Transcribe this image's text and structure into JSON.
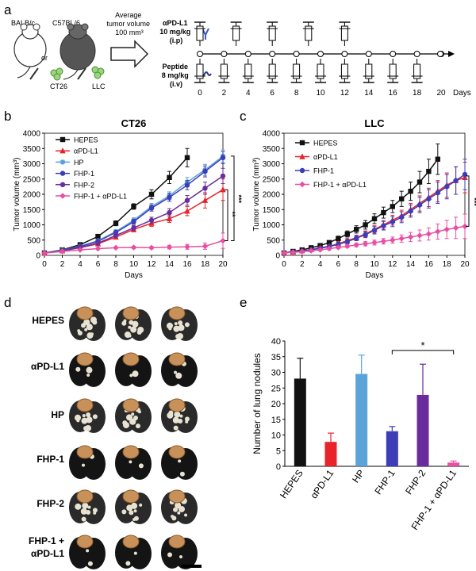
{
  "panels": {
    "a": {
      "letter": "a",
      "mouse1": "BALB/c",
      "or": "or",
      "mouse2": "C57BL/6",
      "cell1": "CT26",
      "cell2": "LLC",
      "avg_lines": [
        "Average",
        "tumor volume",
        "100 mm³"
      ],
      "drug1_lines": [
        "αPD-L1",
        "10 mg/kg",
        "(i.p)"
      ],
      "drug2_lines": [
        "Peptide",
        "8 mg/kg",
        "(i.v)"
      ],
      "days": [
        "0",
        "2",
        "4",
        "6",
        "8",
        "10",
        "12",
        "14",
        "16",
        "18",
        "20"
      ],
      "days_label": "Days",
      "apd_days": [
        0,
        3,
        6,
        9,
        12
      ],
      "peptide_days": [
        0,
        2,
        4,
        6,
        8,
        10,
        12,
        14,
        16,
        18
      ]
    },
    "b": {
      "letter": "b"
    },
    "c": {
      "letter": "c"
    },
    "d": {
      "letter": "d",
      "rows": [
        "HEPES",
        "αPD-L1",
        "HP",
        "FHP-1",
        "FHP-2",
        "FHP-1 +",
        "αPD-L1"
      ]
    },
    "e": {
      "letter": "e"
    }
  },
  "colors": {
    "HEPES": "#111111",
    "aPD": "#e8232a",
    "HP": "#5ba3d9",
    "FHP1": "#3d3db8",
    "FHP2": "#6a2c9c",
    "combo": "#e84fa3"
  },
  "chart_data": [
    {
      "id": "b",
      "type": "line",
      "title": "CT26",
      "xlabel": "Days",
      "ylabel": "Tumor volume (mm³)",
      "xlim": [
        0,
        20
      ],
      "ylim": [
        0,
        4000
      ],
      "xticks": [
        "0",
        "2",
        "4",
        "6",
        "8",
        "10",
        "12",
        "14",
        "16",
        "18",
        "20"
      ],
      "yticks": [
        "0",
        "500",
        "1000",
        "1500",
        "2000",
        "2500",
        "3000",
        "3500",
        "4000"
      ],
      "series": [
        {
          "name": "HEPES",
          "color": "#111111",
          "marker": "square",
          "x": [
            0,
            2,
            4,
            6,
            8,
            10,
            12,
            14,
            16
          ],
          "y": [
            80,
            180,
            350,
            620,
            1050,
            1600,
            2000,
            2550,
            3200
          ],
          "err": [
            20,
            30,
            40,
            50,
            80,
            90,
            150,
            200,
            300
          ]
        },
        {
          "name": "αPD-L1",
          "color": "#e8232a",
          "marker": "triangle",
          "x": [
            0,
            2,
            4,
            6,
            8,
            10,
            12,
            14,
            16,
            18,
            20
          ],
          "y": [
            70,
            150,
            250,
            380,
            600,
            850,
            1050,
            1200,
            1450,
            1800,
            2150
          ],
          "err": [
            15,
            25,
            30,
            40,
            60,
            80,
            100,
            120,
            150,
            250,
            350
          ]
        },
        {
          "name": "HP",
          "color": "#5ba3d9",
          "marker": "circle",
          "x": [
            0,
            2,
            4,
            6,
            8,
            10,
            12,
            14,
            16,
            18,
            20
          ],
          "y": [
            80,
            170,
            300,
            480,
            780,
            1150,
            1600,
            1950,
            2400,
            2800,
            3250
          ],
          "err": [
            20,
            25,
            30,
            40,
            60,
            80,
            100,
            130,
            150,
            180,
            200
          ]
        },
        {
          "name": "FHP-1",
          "color": "#3d3db8",
          "marker": "circle",
          "x": [
            0,
            2,
            4,
            6,
            8,
            10,
            12,
            14,
            16,
            18,
            20
          ],
          "y": [
            75,
            160,
            290,
            460,
            750,
            1100,
            1550,
            1900,
            2300,
            2750,
            3200
          ],
          "err": [
            20,
            25,
            30,
            40,
            60,
            80,
            100,
            130,
            150,
            180,
            200
          ]
        },
        {
          "name": "FHP-2",
          "color": "#6a2c9c",
          "marker": "circle",
          "x": [
            0,
            2,
            4,
            6,
            8,
            10,
            12,
            14,
            16,
            18,
            20
          ],
          "y": [
            75,
            150,
            260,
            400,
            650,
            900,
            1150,
            1400,
            1800,
            2200,
            2600
          ],
          "err": [
            20,
            25,
            30,
            40,
            60,
            80,
            100,
            130,
            160,
            200,
            250
          ]
        },
        {
          "name": "FHP-1 + αPD-L1",
          "color": "#e84fa3",
          "marker": "diamond",
          "x": [
            0,
            2,
            4,
            6,
            8,
            10,
            12,
            14,
            16,
            18,
            20
          ],
          "y": [
            70,
            130,
            180,
            220,
            250,
            260,
            250,
            270,
            280,
            300,
            480
          ],
          "err": [
            15,
            20,
            25,
            30,
            30,
            40,
            40,
            60,
            80,
            100,
            250
          ]
        }
      ],
      "significance": [
        "**",
        "***"
      ]
    },
    {
      "id": "c",
      "type": "line",
      "title": "LLC",
      "xlabel": "Days",
      "ylabel": "Tumor volume (mm³)",
      "xlim": [
        0,
        20
      ],
      "ylim": [
        0,
        4000
      ],
      "xticks": [
        "0",
        "2",
        "4",
        "6",
        "8",
        "10",
        "12",
        "14",
        "16",
        "18",
        "20"
      ],
      "yticks": [
        "0",
        "500",
        "1000",
        "1500",
        "2000",
        "2500",
        "3000",
        "3500",
        "4000"
      ],
      "series": [
        {
          "name": "HEPES",
          "color": "#111111",
          "marker": "square",
          "x": [
            0,
            1,
            2,
            3,
            4,
            5,
            6,
            7,
            8,
            9,
            10,
            11,
            12,
            13,
            14,
            15,
            16,
            17
          ],
          "y": [
            80,
            130,
            180,
            250,
            320,
            420,
            550,
            700,
            850,
            1000,
            1200,
            1400,
            1600,
            1850,
            2100,
            2400,
            2750,
            3150
          ],
          "err": [
            20,
            25,
            30,
            40,
            50,
            60,
            80,
            100,
            120,
            140,
            160,
            180,
            200,
            250,
            300,
            350,
            400,
            500
          ]
        },
        {
          "name": "αPD-L1",
          "color": "#e8232a",
          "marker": "triangle",
          "x": [
            0,
            1,
            2,
            3,
            4,
            5,
            6,
            7,
            8,
            9,
            10,
            11,
            12,
            13,
            14,
            15,
            16,
            17,
            18,
            19,
            20
          ],
          "y": [
            80,
            110,
            150,
            190,
            250,
            300,
            380,
            480,
            580,
            700,
            850,
            1000,
            1150,
            1300,
            1500,
            1700,
            1900,
            2100,
            2300,
            2450,
            2550
          ],
          "err": [
            20,
            25,
            30,
            35,
            40,
            50,
            60,
            70,
            80,
            100,
            120,
            140,
            160,
            180,
            200,
            250,
            300,
            350,
            400,
            450,
            500
          ]
        },
        {
          "name": "FHP-1",
          "color": "#3d3db8",
          "marker": "circle",
          "x": [
            0,
            1,
            2,
            3,
            4,
            5,
            6,
            7,
            8,
            9,
            10,
            11,
            12,
            13,
            14,
            15,
            16,
            17,
            18,
            19,
            20
          ],
          "y": [
            80,
            110,
            140,
            180,
            230,
            290,
            360,
            450,
            560,
            680,
            820,
            970,
            1100,
            1250,
            1450,
            1650,
            1850,
            2050,
            2250,
            2450,
            2650
          ],
          "err": [
            20,
            25,
            30,
            35,
            40,
            50,
            60,
            70,
            80,
            100,
            120,
            140,
            160,
            180,
            200,
            250,
            300,
            350,
            400,
            450,
            500
          ]
        },
        {
          "name": "FHP-1 + αPD-L1",
          "color": "#e84fa3",
          "marker": "diamond",
          "x": [
            0,
            1,
            2,
            3,
            4,
            5,
            6,
            7,
            8,
            9,
            10,
            11,
            12,
            13,
            14,
            15,
            16,
            17,
            18,
            19,
            20
          ],
          "y": [
            80,
            100,
            120,
            150,
            180,
            220,
            260,
            300,
            340,
            380,
            420,
            460,
            500,
            550,
            600,
            650,
            700,
            780,
            850,
            900,
            950
          ],
          "err": [
            20,
            20,
            25,
            30,
            30,
            40,
            40,
            50,
            60,
            70,
            80,
            90,
            100,
            120,
            150,
            180,
            200,
            250,
            300,
            350,
            400
          ]
        }
      ],
      "significance": [
        "***"
      ]
    },
    {
      "id": "e",
      "type": "bar",
      "ylabel": "Number of lung nodules",
      "ylim": [
        0,
        40
      ],
      "yticks": [
        "0",
        "5",
        "10",
        "15",
        "20",
        "25",
        "30",
        "35",
        "40"
      ],
      "categories": [
        "HEPES",
        "αPD-L1",
        "HP",
        "FHP-1",
        "FHP-2",
        "FHP-1 + αPD-L1"
      ],
      "values": [
        28,
        7.8,
        29.5,
        11.2,
        22.8,
        1.2
      ],
      "errors": [
        6.5,
        2.8,
        6.0,
        1.5,
        9.8,
        0.5
      ],
      "colors": [
        "#111111",
        "#e8232a",
        "#5ba3d9",
        "#3d3db8",
        "#6a2c9c",
        "#e84fa3"
      ],
      "significance": "*"
    }
  ]
}
